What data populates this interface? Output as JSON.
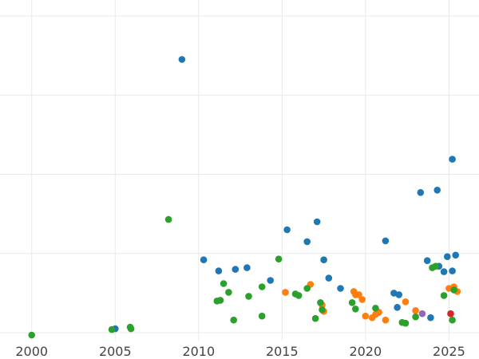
{
  "chart_data": {
    "type": "scatter",
    "title": "",
    "xlabel": "",
    "ylabel": "",
    "xlim": [
      1998.1,
      2026.8
    ],
    "ylim": [
      -0.1,
      4.2
    ],
    "x_ticks": [
      2000,
      2005,
      2010,
      2015,
      2020,
      2025
    ],
    "x_tick_labels": [
      "2000",
      "2005",
      "2010",
      "2015",
      "2020",
      "2025"
    ],
    "y_gridlines": [
      0,
      1,
      2,
      3,
      4
    ],
    "grid": true,
    "legend": "none",
    "series": [
      {
        "color": "#1f77b4",
        "points": [
          [
            2005.0,
            0.05
          ],
          [
            2009.0,
            3.45
          ],
          [
            2010.3,
            0.92
          ],
          [
            2011.2,
            0.78
          ],
          [
            2012.2,
            0.8
          ],
          [
            2012.9,
            0.82
          ],
          [
            2014.3,
            0.66
          ],
          [
            2015.3,
            1.3
          ],
          [
            2016.5,
            1.15
          ],
          [
            2017.1,
            1.4
          ],
          [
            2017.5,
            0.92
          ],
          [
            2017.8,
            0.69
          ],
          [
            2018.5,
            0.56
          ],
          [
            2021.2,
            1.16
          ],
          [
            2021.7,
            0.5
          ],
          [
            2021.9,
            0.32
          ],
          [
            2022.0,
            0.48
          ],
          [
            2023.3,
            1.77
          ],
          [
            2023.7,
            0.91
          ],
          [
            2023.9,
            0.19
          ],
          [
            2024.3,
            1.8
          ],
          [
            2024.4,
            0.84
          ],
          [
            2024.7,
            0.77
          ],
          [
            2024.9,
            0.96
          ],
          [
            2025.2,
            2.19
          ],
          [
            2025.2,
            0.78
          ],
          [
            2025.4,
            0.98
          ]
        ]
      },
      {
        "color": "#ff7f0e",
        "points": [
          [
            2015.2,
            0.51
          ],
          [
            2016.7,
            0.61
          ],
          [
            2017.4,
            0.35
          ],
          [
            2017.5,
            0.27
          ],
          [
            2019.3,
            0.52
          ],
          [
            2019.4,
            0.48
          ],
          [
            2019.6,
            0.48
          ],
          [
            2019.8,
            0.42
          ],
          [
            2020.0,
            0.21
          ],
          [
            2020.4,
            0.19
          ],
          [
            2020.6,
            0.23
          ],
          [
            2020.8,
            0.26
          ],
          [
            2021.2,
            0.16
          ],
          [
            2022.4,
            0.39
          ],
          [
            2023.0,
            0.28
          ],
          [
            2025.0,
            0.56
          ],
          [
            2025.3,
            0.58
          ],
          [
            2025.5,
            0.52
          ]
        ]
      },
      {
        "color": "#2ca02c",
        "points": [
          [
            2000.0,
            -0.03
          ],
          [
            2004.8,
            0.04
          ],
          [
            2005.9,
            0.07
          ],
          [
            2005.95,
            0.05
          ],
          [
            2008.2,
            1.43
          ],
          [
            2011.1,
            0.4
          ],
          [
            2011.3,
            0.41
          ],
          [
            2011.5,
            0.62
          ],
          [
            2011.8,
            0.51
          ],
          [
            2012.1,
            0.16
          ],
          [
            2013.0,
            0.46
          ],
          [
            2013.8,
            0.21
          ],
          [
            2013.8,
            0.58
          ],
          [
            2014.8,
            0.93
          ],
          [
            2015.8,
            0.49
          ],
          [
            2016.0,
            0.47
          ],
          [
            2016.5,
            0.56
          ],
          [
            2017.0,
            0.18
          ],
          [
            2017.3,
            0.38
          ],
          [
            2017.4,
            0.29
          ],
          [
            2019.2,
            0.38
          ],
          [
            2019.4,
            0.3
          ],
          [
            2020.6,
            0.31
          ],
          [
            2022.2,
            0.13
          ],
          [
            2022.4,
            0.12
          ],
          [
            2023.0,
            0.2
          ],
          [
            2024.0,
            0.82
          ],
          [
            2024.2,
            0.84
          ],
          [
            2024.7,
            0.47
          ],
          [
            2025.2,
            0.16
          ],
          [
            2025.3,
            0.54
          ]
        ]
      },
      {
        "color": "#d62728",
        "points": [
          [
            2025.1,
            0.24
          ]
        ]
      },
      {
        "color": "#9467bd",
        "points": [
          [
            2023.4,
            0.24
          ]
        ]
      }
    ]
  }
}
